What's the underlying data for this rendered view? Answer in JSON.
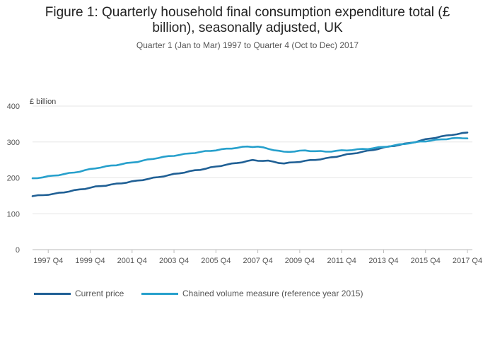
{
  "chart_data": {
    "type": "line",
    "title_lines": [
      "Figure 1: Quarterly household final consumption expenditure total (£",
      "billion), seasonally adjusted, UK"
    ],
    "subtitle": "Quarter 1 (Jan to Mar) 1997 to Quarter 4 (Oct to Dec) 2017",
    "ylabel": "£ billion",
    "xlabel": "",
    "ylim": [
      0,
      400
    ],
    "yticks": [
      "0",
      "100",
      "200",
      "300",
      "400"
    ],
    "xticks": [
      "1997 Q4",
      "1999 Q4",
      "2001 Q4",
      "2003 Q4",
      "2005 Q4",
      "2007 Q4",
      "2009 Q4",
      "2011 Q4",
      "2013 Q4",
      "2015 Q4",
      "2017 Q4"
    ],
    "start_year": 1997,
    "grid": true,
    "legend_position": "bottom",
    "series": [
      {
        "name": "Current price",
        "color": "#206095",
        "anchors": [
          [
            1997,
            149
          ],
          [
            1998,
            155
          ],
          [
            1999,
            165
          ],
          [
            2000,
            175
          ],
          [
            2001,
            183
          ],
          [
            2002,
            192
          ],
          [
            2003,
            202
          ],
          [
            2004,
            213
          ],
          [
            2005,
            223
          ],
          [
            2006,
            234
          ],
          [
            2007.5,
            249
          ],
          [
            2008.25,
            247
          ],
          [
            2009,
            240
          ],
          [
            2010,
            247
          ],
          [
            2011,
            254
          ],
          [
            2012,
            265
          ],
          [
            2013,
            275
          ],
          [
            2014,
            287
          ],
          [
            2015,
            297
          ],
          [
            2016,
            310
          ],
          [
            2017,
            320
          ],
          [
            2017.75,
            326
          ]
        ]
      },
      {
        "name": "Chained volume measure (reference year 2015)",
        "color": "#27A0CC",
        "anchors": [
          [
            1997,
            198
          ],
          [
            1998,
            206
          ],
          [
            1999,
            215
          ],
          [
            2000,
            227
          ],
          [
            2001,
            236
          ],
          [
            2002,
            245
          ],
          [
            2003,
            256
          ],
          [
            2004,
            264
          ],
          [
            2005,
            272
          ],
          [
            2006,
            279
          ],
          [
            2007.25,
            287
          ],
          [
            2007.75,
            287
          ],
          [
            2008.5,
            278
          ],
          [
            2009,
            272
          ],
          [
            2010,
            276
          ],
          [
            2011,
            273
          ],
          [
            2012,
            277
          ],
          [
            2013,
            281
          ],
          [
            2014,
            288
          ],
          [
            2015,
            297
          ],
          [
            2016,
            304
          ],
          [
            2017,
            310
          ],
          [
            2017.75,
            311
          ]
        ]
      }
    ]
  }
}
